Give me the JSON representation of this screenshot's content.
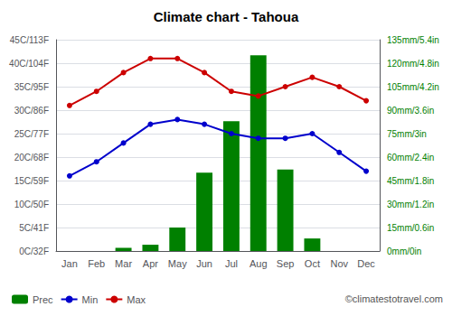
{
  "chart_data": {
    "type": "bar",
    "title": "Climate chart - Tahoua",
    "categories": [
      "Jan",
      "Feb",
      "Mar",
      "Apr",
      "May",
      "Jun",
      "Jul",
      "Aug",
      "Sep",
      "Oct",
      "Nov",
      "Dec"
    ],
    "series": [
      {
        "name": "Prec",
        "type": "bar",
        "axis": "y2",
        "color": "#008000",
        "values": [
          0,
          0,
          2,
          4,
          15,
          50,
          83,
          125,
          52,
          8,
          0,
          0
        ]
      },
      {
        "name": "Min",
        "type": "line",
        "color": "#0000cc",
        "marker": "circle",
        "values": [
          16,
          19,
          23,
          27,
          28,
          27,
          25,
          24,
          24,
          25,
          21,
          17
        ]
      },
      {
        "name": "Max",
        "type": "line",
        "color": "#cc0000",
        "marker": "circle",
        "values": [
          31,
          34,
          38,
          41,
          41,
          38,
          34,
          33,
          35,
          37,
          35,
          32
        ]
      }
    ],
    "ylim": [
      0,
      45
    ],
    "yticks": [
      {
        "value": 0,
        "label": "0C/32F"
      },
      {
        "value": 5,
        "label": "5C/41F"
      },
      {
        "value": 10,
        "label": "10C/50F"
      },
      {
        "value": 15,
        "label": "15C/59F"
      },
      {
        "value": 20,
        "label": "20C/68F"
      },
      {
        "value": 25,
        "label": "25C/77F"
      },
      {
        "value": 30,
        "label": "30C/86F"
      },
      {
        "value": 35,
        "label": "35C/95F"
      },
      {
        "value": 40,
        "label": "40C/104F"
      },
      {
        "value": 45,
        "label": "45C/113F"
      }
    ],
    "y2lim": [
      0,
      135
    ],
    "y2ticks": [
      {
        "value": 0,
        "label": "0mm/0in"
      },
      {
        "value": 15,
        "label": "15mm/0.6in"
      },
      {
        "value": 30,
        "label": "30mm/1.2in"
      },
      {
        "value": 45,
        "label": "45mm/1.8in"
      },
      {
        "value": 60,
        "label": "60mm/2.4in"
      },
      {
        "value": 75,
        "label": "75mm/3in"
      },
      {
        "value": 90,
        "label": "90mm/3.6in"
      },
      {
        "value": 105,
        "label": "105mm/4.2in"
      },
      {
        "value": 120,
        "label": "120mm/4.8in"
      },
      {
        "value": 135,
        "label": "135mm/5.4in"
      }
    ],
    "grid": true,
    "legend": "bottom",
    "annotations": [
      "©climatestotravel.com"
    ]
  }
}
